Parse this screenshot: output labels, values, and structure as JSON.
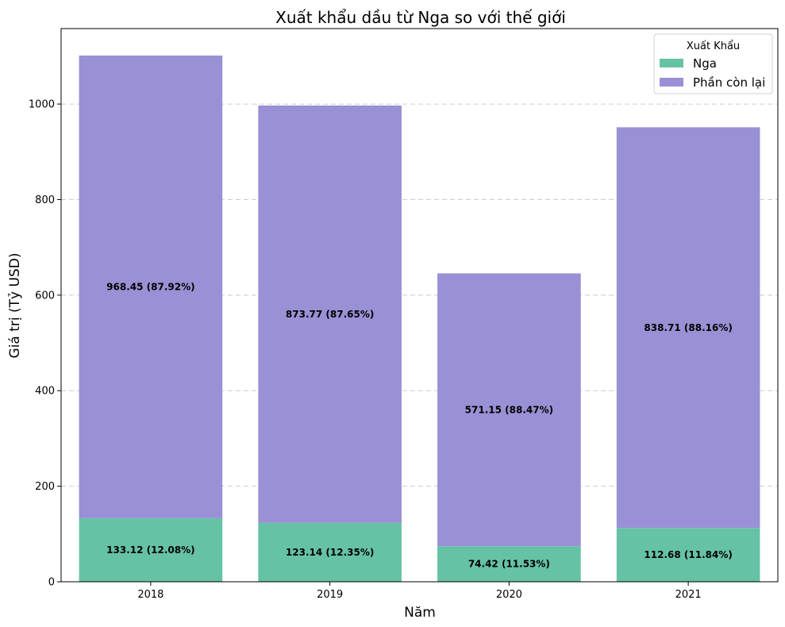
{
  "chart_data": {
    "type": "bar",
    "stacked": true,
    "title": "Xuất khẩu dầu từ Nga so với thế giới",
    "xlabel": "Năm",
    "ylabel": "Giá trị (Tỷ USD)",
    "categories": [
      "2018",
      "2019",
      "2020",
      "2021"
    ],
    "ylim": [
      0,
      1158
    ],
    "yticks": [
      0,
      200,
      400,
      600,
      800,
      1000
    ],
    "grid": "y-dashed",
    "legend": {
      "title": "Xuất Khẩu",
      "position": "top-right"
    },
    "series": [
      {
        "name": "Nga",
        "color": "#66c2a5",
        "values": [
          133.12,
          123.14,
          74.42,
          112.68
        ],
        "labels": [
          "133.12 (12.08%)",
          "123.14 (12.35%)",
          "74.42 (11.53%)",
          "112.68 (11.84%)"
        ]
      },
      {
        "name": "Phần còn lại",
        "color": "#9a90d5",
        "values": [
          968.45,
          873.77,
          571.15,
          838.71
        ],
        "labels": [
          "968.45 (87.92%)",
          "873.77 (87.65%)",
          "571.15 (88.47%)",
          "838.71 (88.16%)"
        ]
      }
    ]
  }
}
